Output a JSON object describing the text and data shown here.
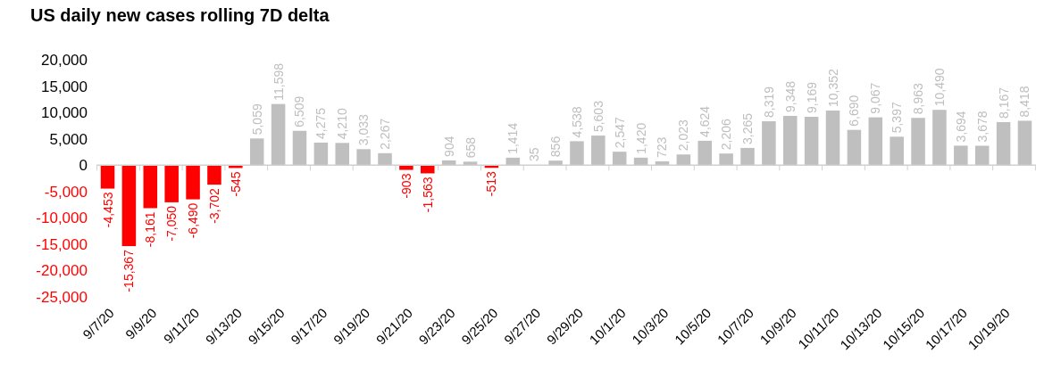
{
  "chart_data": {
    "type": "bar",
    "title": "US daily new cases rolling 7D delta",
    "categories": [
      "9/7/20",
      null,
      "9/9/20",
      null,
      "9/11/20",
      null,
      "9/13/20",
      null,
      "9/15/20",
      null,
      "9/17/20",
      null,
      "9/19/20",
      null,
      "9/21/20",
      null,
      "9/23/20",
      null,
      "9/25/20",
      null,
      "9/27/20",
      null,
      "9/29/20",
      null,
      "10/1/20",
      null,
      "10/3/20",
      null,
      "10/5/20",
      null,
      "10/7/20",
      null,
      "10/9/20",
      null,
      "10/11/20",
      null,
      "10/13/20",
      null,
      "10/15/20",
      null,
      "10/17/20",
      null,
      "10/19/20",
      null
    ],
    "values": [
      -4453,
      -15367,
      -8161,
      -7050,
      -6490,
      -3702,
      -545,
      5059,
      11598,
      6509,
      4275,
      4210,
      3033,
      2267,
      -903,
      -1563,
      904,
      658,
      -513,
      1414,
      35,
      856,
      4538,
      5603,
      2547,
      1420,
      723,
      2023,
      4624,
      2206,
      3265,
      8319,
      9348,
      9169,
      10352,
      6690,
      9067,
      5397,
      8963,
      10490,
      3694,
      3678,
      8167,
      8418
    ],
    "value_labels": [
      "-4,453",
      "-15,367",
      "-8,161",
      "-7,050",
      "-6,490",
      "-3,702",
      "-545",
      "5,059",
      "11,598",
      "6,509",
      "4,275",
      "4,210",
      "3,033",
      "2,267",
      "-903",
      "-1,563",
      "904",
      "658",
      "-513",
      "1,414",
      "35",
      "856",
      "4,538",
      "5,603",
      "2,547",
      "1,420",
      "723",
      "2,023",
      "4,624",
      "2,206",
      "3,265",
      "8,319",
      "9,348",
      "9,169",
      "10,352",
      "6,690",
      "9,067",
      "5,397",
      "8,963",
      "10,490",
      "3,694",
      "3,678",
      "8,167",
      "8,418"
    ],
    "colors": [
      "#ff0000",
      "#ff0000",
      "#ff0000",
      "#ff0000",
      "#ff0000",
      "#ff0000",
      "#ff0000",
      "#bfbfbf",
      "#bfbfbf",
      "#bfbfbf",
      "#bfbfbf",
      "#bfbfbf",
      "#bfbfbf",
      "#bfbfbf",
      "#ff0000",
      "#ff0000",
      "#bfbfbf",
      "#bfbfbf",
      "#ff0000",
      "#bfbfbf",
      "#bfbfbf",
      "#bfbfbf",
      "#bfbfbf",
      "#bfbfbf",
      "#bfbfbf",
      "#bfbfbf",
      "#bfbfbf",
      "#bfbfbf",
      "#bfbfbf",
      "#bfbfbf",
      "#bfbfbf",
      "#bfbfbf",
      "#bfbfbf",
      "#bfbfbf",
      "#bfbfbf",
      "#bfbfbf",
      "#bfbfbf",
      "#bfbfbf",
      "#bfbfbf",
      "#bfbfbf",
      "#bfbfbf",
      "#bfbfbf",
      "#bfbfbf",
      "#bfbfbf"
    ],
    "ylim": [
      -25000,
      20000
    ],
    "yticks": [
      {
        "value": -25000,
        "label": "-25,000"
      },
      {
        "value": -20000,
        "label": "-20,000"
      },
      {
        "value": -15000,
        "label": "-15,000"
      },
      {
        "value": -10000,
        "label": "-10,000"
      },
      {
        "value": -5000,
        "label": "-5,000"
      },
      0,
      {
        "value": 5000,
        "label": "5,000"
      },
      {
        "value": 10000,
        "label": "10,000"
      },
      {
        "value": 15000,
        "label": "15,000"
      },
      {
        "value": 20000,
        "label": "20,000"
      }
    ]
  }
}
